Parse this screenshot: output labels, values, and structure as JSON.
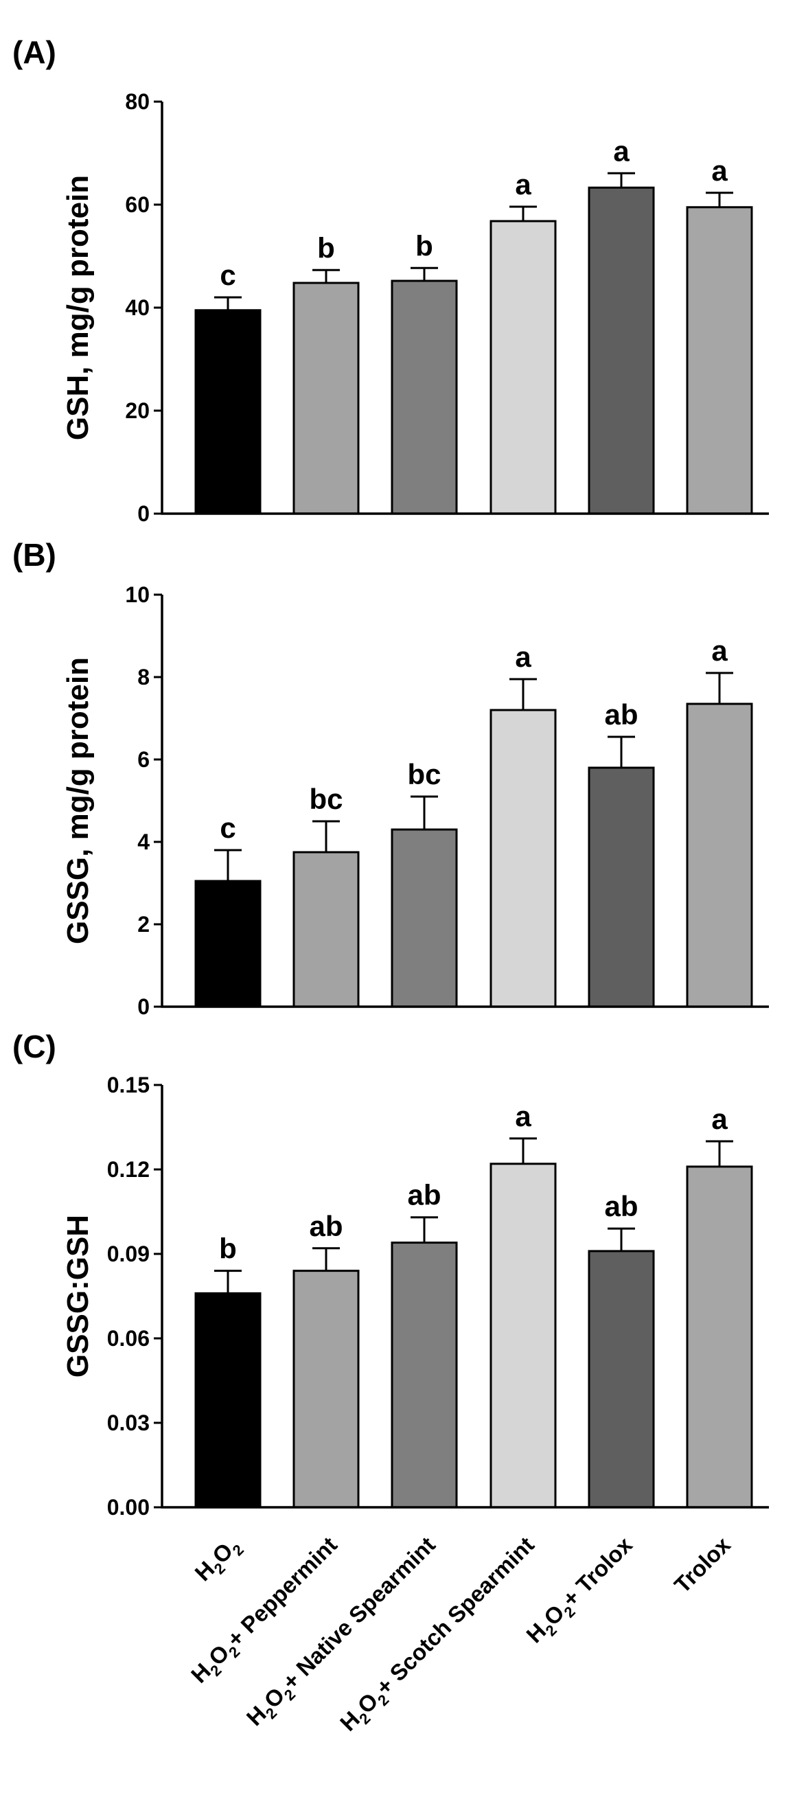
{
  "chart_data": [
    {
      "type": "bar",
      "panel": "(A)",
      "ylabel": "GSH, mg/g protein",
      "ylim": [
        0,
        80
      ],
      "yticks": [
        "0",
        "20",
        "40",
        "60",
        "80"
      ],
      "categories": [
        "H2O2",
        "H2O2+ Peppermint",
        "H2O2+ Native Spearmint",
        "H2O2+ Scotch Spearmint",
        "H2O2+ Trolox",
        "Trolox"
      ],
      "values": [
        39.5,
        44.8,
        45.2,
        56.8,
        63.3,
        59.5
      ],
      "errors": [
        2.5,
        2.5,
        2.5,
        2.8,
        2.8,
        2.8
      ],
      "significance": [
        "c",
        "b",
        "b",
        "a",
        "a",
        "a"
      ]
    },
    {
      "type": "bar",
      "panel": "(B)",
      "ylabel": "GSSG, mg/g protein",
      "ylim": [
        0,
        10
      ],
      "yticks": [
        "0",
        "2",
        "4",
        "6",
        "8",
        "10"
      ],
      "categories": [
        "H2O2",
        "H2O2+ Peppermint",
        "H2O2+ Native Spearmint",
        "H2O2+ Scotch Spearmint",
        "H2O2+ Trolox",
        "Trolox"
      ],
      "values": [
        3.05,
        3.75,
        4.3,
        7.2,
        5.8,
        7.35
      ],
      "errors": [
        0.75,
        0.75,
        0.8,
        0.75,
        0.75,
        0.75
      ],
      "significance": [
        "c",
        "bc",
        "bc",
        "a",
        "ab",
        "a"
      ]
    },
    {
      "type": "bar",
      "panel": "(C)",
      "ylabel": "GSSG:GSH",
      "ylim": [
        0,
        0.15
      ],
      "yticks": [
        "0.00",
        "0.03",
        "0.06",
        "0.09",
        "0.12",
        "0.15"
      ],
      "categories": [
        "H2O2",
        "H2O2+ Peppermint",
        "H2O2+ Native Spearmint",
        "H2O2+ Scotch Spearmint",
        "H2O2+ Trolox",
        "Trolox"
      ],
      "values": [
        0.076,
        0.084,
        0.094,
        0.122,
        0.091,
        0.121
      ],
      "errors": [
        0.008,
        0.008,
        0.009,
        0.009,
        0.008,
        0.009
      ],
      "significance": [
        "b",
        "ab",
        "ab",
        "a",
        "ab",
        "a"
      ]
    }
  ],
  "x_axis_labels": [
    {
      "base": "H",
      "sub1": "2",
      "mid": "O",
      "sub2": "2",
      "tail": ""
    },
    {
      "base": "H",
      "sub1": "2",
      "mid": "O",
      "sub2": "2",
      "tail": "+ Peppermint"
    },
    {
      "base": "H",
      "sub1": "2",
      "mid": "O",
      "sub2": "2",
      "tail": "+ Native Spearmint"
    },
    {
      "base": "H",
      "sub1": "2",
      "mid": "O",
      "sub2": "2",
      "tail": "+ Scotch Spearmint"
    },
    {
      "base": "H",
      "sub1": "2",
      "mid": "O",
      "sub2": "2",
      "tail": "+ Trolox"
    },
    {
      "base": "Trolox",
      "sub1": "",
      "mid": "",
      "sub2": "",
      "tail": ""
    }
  ],
  "bar_colors": [
    "#000000",
    "#a3a3a3",
    "#7f7f7f",
    "#d6d6d6",
    "#5f5f5f",
    "#a6a6a6"
  ]
}
